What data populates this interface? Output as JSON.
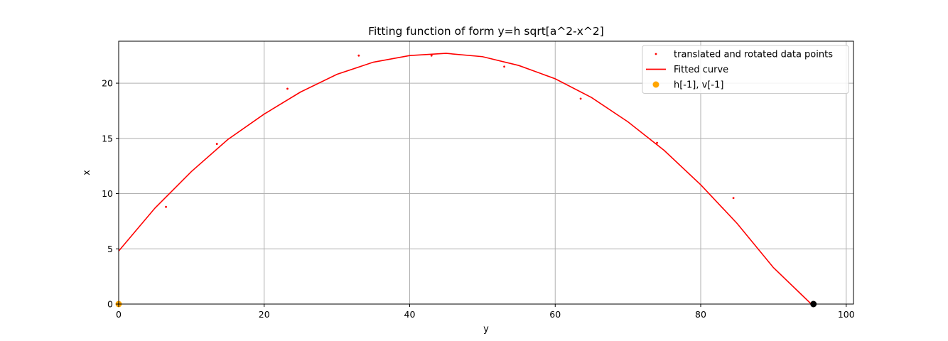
{
  "chart_data": {
    "type": "scatter",
    "title": "Fitting function of form y=h sqrt[a^2-x^2]",
    "xlabel": "y",
    "ylabel": "x",
    "xlim": [
      0,
      101
    ],
    "ylim": [
      0,
      23.8
    ],
    "xticks": [
      0,
      20,
      40,
      60,
      80,
      100
    ],
    "yticks": [
      0,
      5,
      10,
      15,
      20
    ],
    "grid": true,
    "legend_position": "top-right",
    "series": [
      {
        "name": "translated and rotated data points",
        "kind": "scatter",
        "color": "#ff0000",
        "x": [
          6.5,
          13.5,
          23.2,
          33.0,
          43.0,
          53.0,
          63.5,
          74.0,
          84.5
        ],
        "y": [
          8.8,
          14.5,
          19.5,
          22.5,
          22.5,
          21.5,
          18.6,
          14.6,
          9.6
        ]
      },
      {
        "name": "Fitted curve",
        "kind": "line",
        "color": "#ff0000",
        "x": [
          0,
          5,
          10,
          15,
          20,
          25,
          30,
          35,
          40,
          45,
          50,
          55,
          60,
          65,
          70,
          75,
          80,
          85,
          90,
          95.2
        ],
        "y": [
          4.8,
          8.7,
          12.0,
          14.9,
          17.2,
          19.2,
          20.8,
          21.9,
          22.5,
          22.7,
          22.4,
          21.6,
          20.4,
          18.7,
          16.5,
          13.9,
          10.8,
          7.3,
          3.3,
          0
        ]
      },
      {
        "name": "h[-1], v[-1]",
        "kind": "scatter",
        "color": "#ffa500",
        "x": [
          0
        ],
        "y": [
          0
        ]
      },
      {
        "name": "",
        "kind": "scatter",
        "color": "#000000",
        "x": [
          95.5
        ],
        "y": [
          0
        ]
      }
    ]
  }
}
